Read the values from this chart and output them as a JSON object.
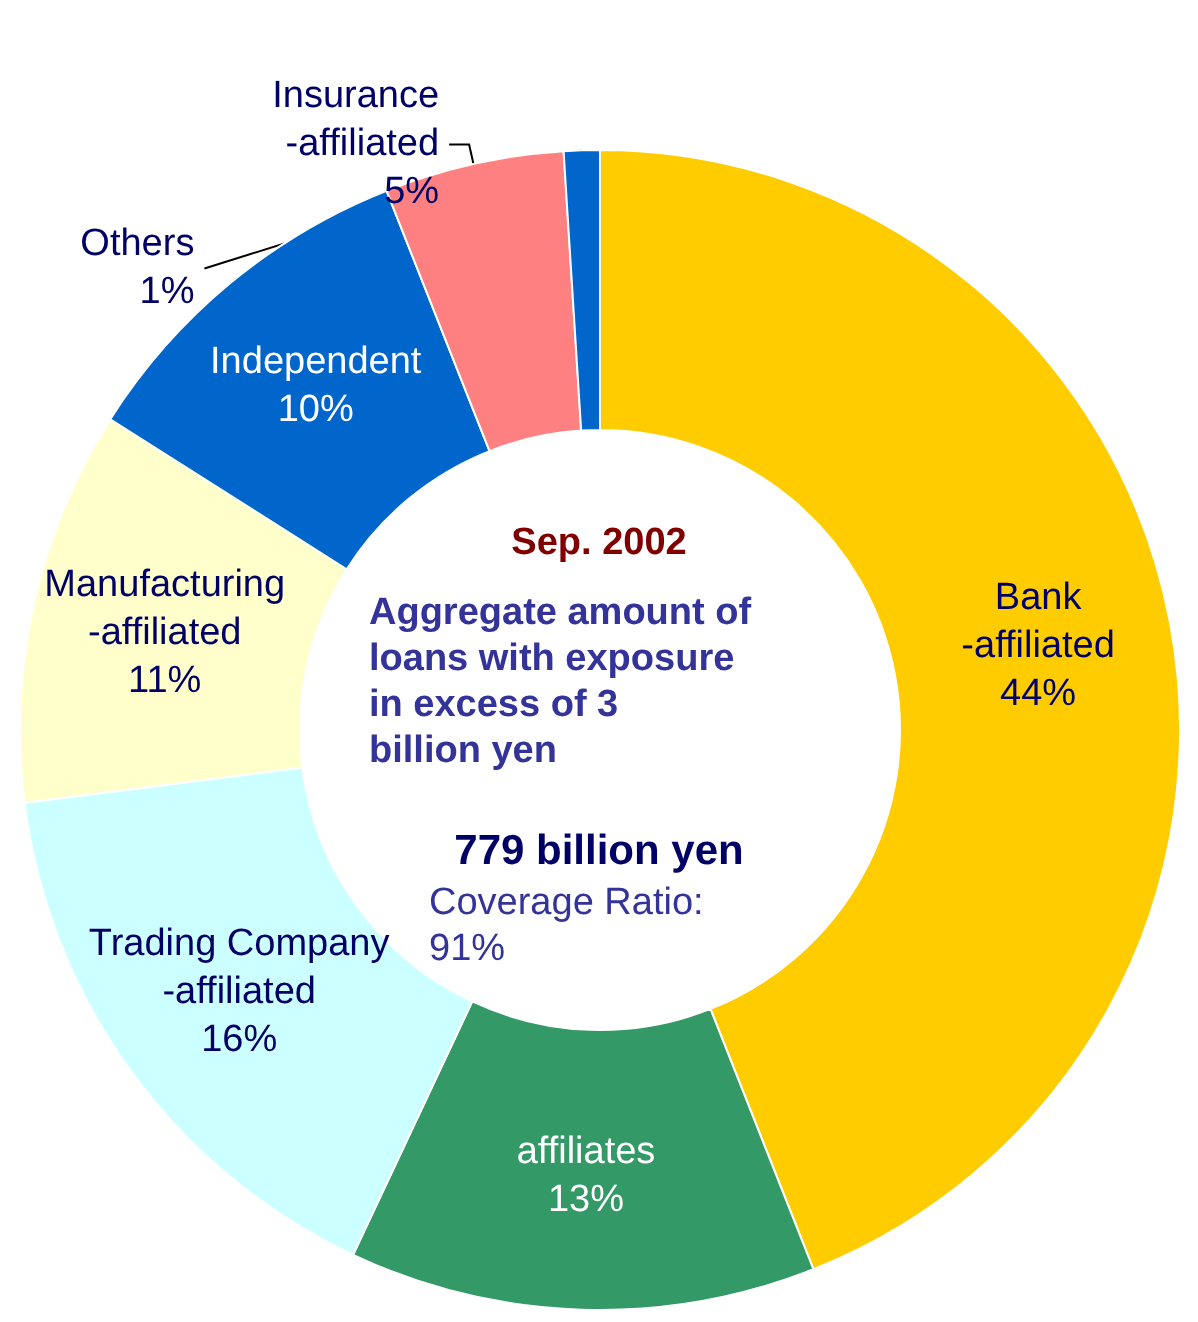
{
  "chart_data": {
    "type": "donut",
    "title": "Sep. 2002",
    "subtitle": "Aggregate amount of loans with exposure in excess of 3 billion yen",
    "annotations": [
      "779 billion yen",
      "Coverage Ratio: 91%"
    ],
    "categories": [
      "Bank-affiliated",
      "affiliates",
      "Trading Company-affiliated",
      "Manufacturing-affiliated",
      "Independent",
      "Insurance-affiliated",
      "Others"
    ],
    "values": [
      44,
      13,
      16,
      11,
      10,
      5,
      1
    ],
    "colors": [
      "#ffcc00",
      "#339966",
      "#ccffff",
      "#ffffcc",
      "#0066cc",
      "#ff8080",
      "#0066cc"
    ],
    "value_labels": [
      "44%",
      "13%",
      "16%",
      "11%",
      "10%",
      "5%",
      "1%"
    ],
    "legend": false
  }
}
